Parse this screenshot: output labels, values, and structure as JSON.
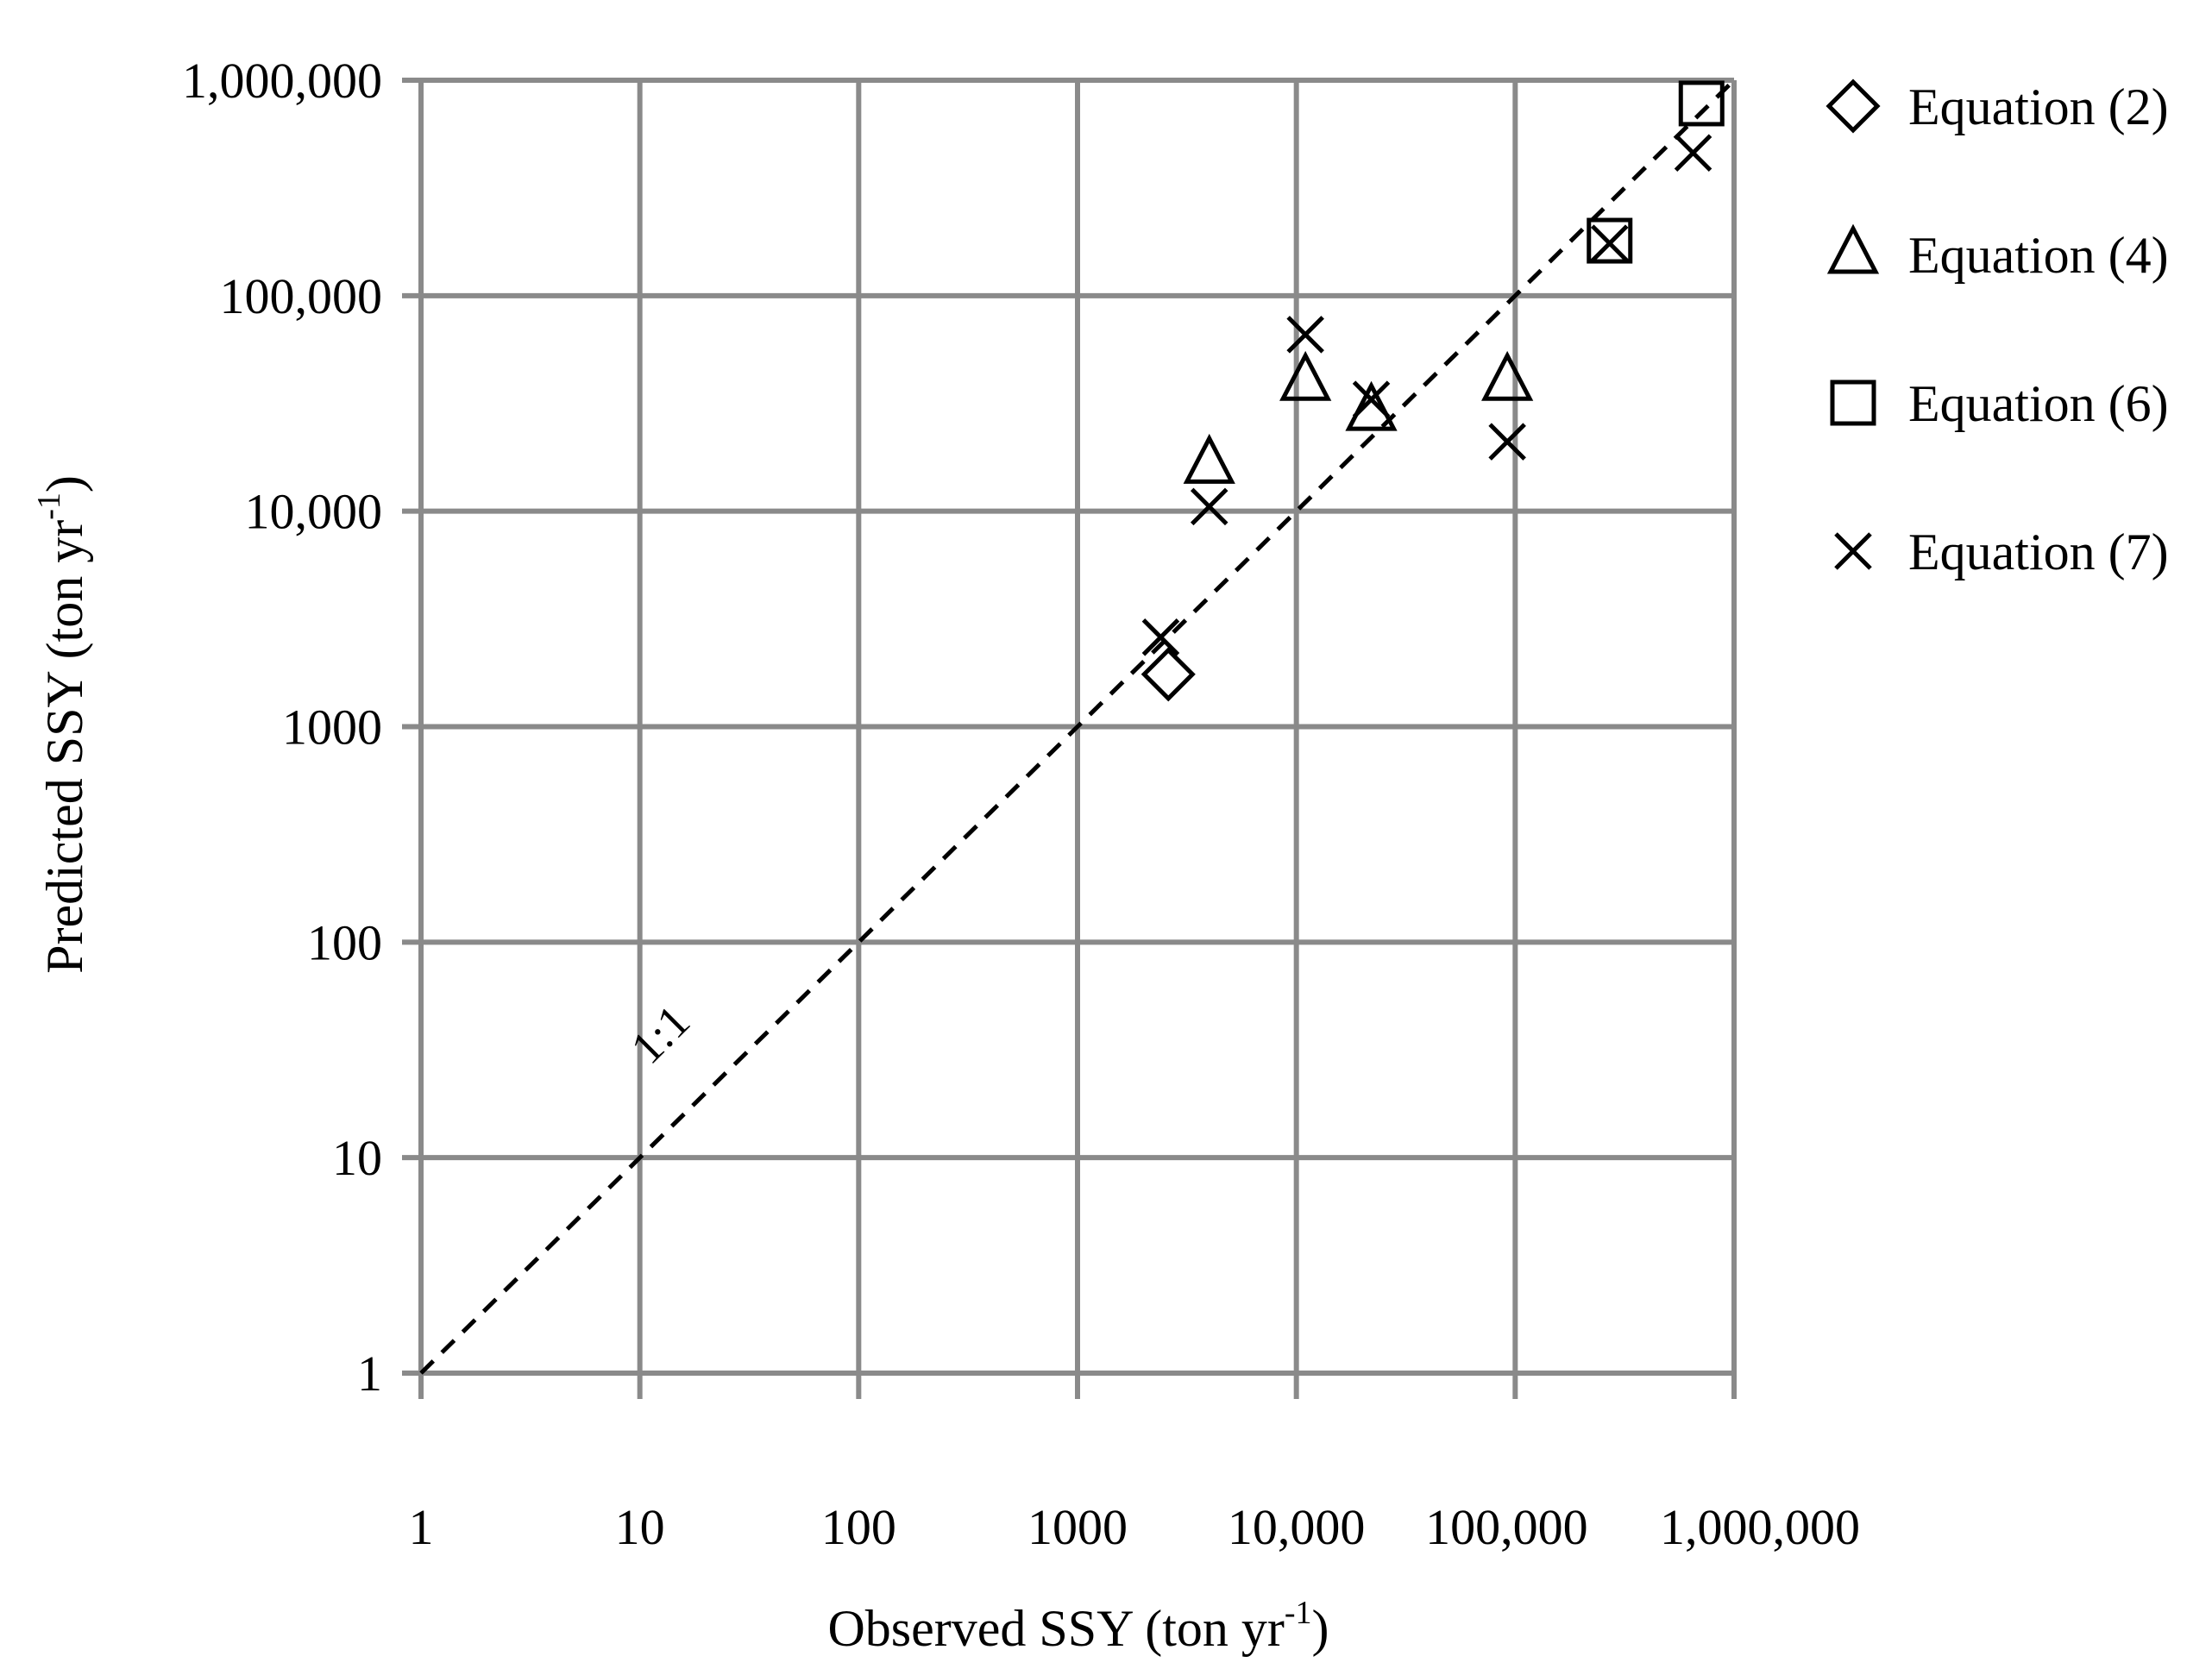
{
  "chart_data": {
    "type": "scatter",
    "xscale": "log",
    "yscale": "log",
    "xlim": [
      1,
      1000000
    ],
    "ylim": [
      1,
      1000000
    ],
    "grid": true,
    "x_ticks": [
      1,
      10,
      100,
      1000,
      10000,
      100000,
      1000000
    ],
    "y_ticks": [
      1,
      10,
      100,
      1000,
      10000,
      100000,
      1000000
    ],
    "x_tick_labels": [
      "1",
      "10",
      "100",
      "1000",
      "10,000",
      "100,000",
      "1,000,000"
    ],
    "y_tick_labels": [
      "1",
      "10",
      "100",
      "1000",
      "10,000",
      "100,000",
      "1,000,000"
    ],
    "xlabel": {
      "main": "Observed SSY (ton yr",
      "sup": "-1",
      "tail": ")"
    },
    "ylabel": {
      "main": "Predicted SSY (ton yr",
      "sup": "-1",
      "tail": ")"
    },
    "legend_position": "right",
    "reference_line": {
      "label": "1:1",
      "from": [
        1,
        1
      ],
      "to": [
        1000000,
        1000000
      ],
      "style": "dashed"
    },
    "series": [
      {
        "name": "Equation (2)",
        "marker": "diamond",
        "points": [
          [
            2600,
            1750
          ]
        ]
      },
      {
        "name": "Equation (4)",
        "marker": "triangle",
        "points": [
          [
            4000,
            16500
          ],
          [
            11000,
            40000
          ],
          [
            22000,
            29000
          ],
          [
            92000,
            40000
          ]
        ]
      },
      {
        "name": "Equation (6)",
        "marker": "square",
        "points": [
          [
            270000,
            180000
          ],
          [
            710000,
            780000
          ]
        ]
      },
      {
        "name": "Equation (7)",
        "marker": "x",
        "points": [
          [
            2400,
            2600
          ],
          [
            4000,
            10500
          ],
          [
            11000,
            66000
          ],
          [
            22000,
            33000
          ],
          [
            92000,
            21000
          ],
          [
            270000,
            175000
          ],
          [
            650000,
            460000
          ]
        ]
      }
    ]
  }
}
